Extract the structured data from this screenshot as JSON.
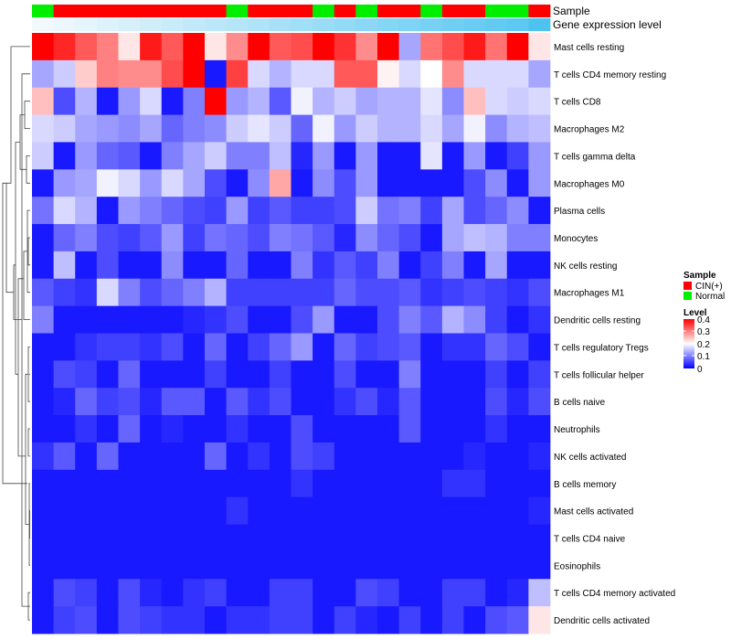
{
  "chart_data": {
    "type": "heatmap",
    "title": "",
    "annotation_tracks": [
      {
        "name": "Sample",
        "label": "Sample"
      },
      {
        "name": "Gene expression level",
        "label": "Gene expression level"
      }
    ],
    "sample_groups": [
      "G",
      "R",
      "R",
      "R",
      "R",
      "R",
      "R",
      "R",
      "R",
      "G",
      "R",
      "R",
      "R",
      "G",
      "R",
      "G",
      "R",
      "R",
      "G",
      "R",
      "R",
      "G",
      "G",
      "R"
    ],
    "expression_track": [
      0.03,
      0.04,
      0.05,
      0.06,
      0.07,
      0.08,
      0.09,
      0.1,
      0.11,
      0.12,
      0.13,
      0.14,
      0.15,
      0.16,
      0.17,
      0.18,
      0.19,
      0.2,
      0.21,
      0.22,
      0.23,
      0.24,
      0.25,
      0.27
    ],
    "rows": [
      "Mast cells resting",
      "T cells CD4 memory resting",
      "T cells CD8",
      "Macrophages M2",
      "T cells gamma delta",
      "Macrophages M0",
      "Plasma cells",
      "Monocytes",
      "NK cells resting",
      "Macrophages M1",
      "Dendritic cells resting",
      "T cells regulatory  Tregs",
      "T cells follicular helper",
      "B cells naive",
      "Neutrophils",
      "NK cells activated",
      "B cells memory",
      "Mast cells activated",
      "T cells CD4 naive",
      "Eosinophils",
      "T cells CD4 memory activated",
      "Dendritic cells activated"
    ],
    "values": [
      [
        0.4,
        0.37,
        0.33,
        0.3,
        0.22,
        0.38,
        0.33,
        0.4,
        0.22,
        0.29,
        0.4,
        0.33,
        0.34,
        0.4,
        0.36,
        0.29,
        0.4,
        0.13,
        0.31,
        0.34,
        0.38,
        0.31,
        0.4,
        0.22
      ],
      [
        0.13,
        0.16,
        0.24,
        0.3,
        0.29,
        0.29,
        0.34,
        0.4,
        0.02,
        0.35,
        0.17,
        0.14,
        0.17,
        0.17,
        0.33,
        0.33,
        0.21,
        0.17,
        0.2,
        0.29,
        0.17,
        0.17,
        0.17,
        0.13
      ],
      [
        0.25,
        0.06,
        0.14,
        0.02,
        0.12,
        0.17,
        0.02,
        0.1,
        0.4,
        0.12,
        0.14,
        0.07,
        0.19,
        0.14,
        0.16,
        0.13,
        0.14,
        0.14,
        0.18,
        0.11,
        0.25,
        0.17,
        0.16,
        0.17
      ],
      [
        0.17,
        0.16,
        0.13,
        0.12,
        0.11,
        0.13,
        0.08,
        0.1,
        0.11,
        0.16,
        0.18,
        0.16,
        0.08,
        0.19,
        0.12,
        0.16,
        0.14,
        0.14,
        0.17,
        0.13,
        0.19,
        0.11,
        0.14,
        0.15
      ],
      [
        0.16,
        0.02,
        0.12,
        0.08,
        0.07,
        0.02,
        0.1,
        0.13,
        0.16,
        0.1,
        0.1,
        0.15,
        0.03,
        0.12,
        0.02,
        0.12,
        0.02,
        0.02,
        0.18,
        0.02,
        0.12,
        0.02,
        0.05,
        0.12
      ],
      [
        0.02,
        0.12,
        0.13,
        0.19,
        0.17,
        0.12,
        0.17,
        0.13,
        0.06,
        0.02,
        0.11,
        0.27,
        0.02,
        0.11,
        0.06,
        0.12,
        0.02,
        0.02,
        0.02,
        0.02,
        0.06,
        0.11,
        0.02,
        0.12
      ],
      [
        0.09,
        0.17,
        0.14,
        0.02,
        0.12,
        0.1,
        0.08,
        0.06,
        0.05,
        0.12,
        0.05,
        0.07,
        0.05,
        0.05,
        0.06,
        0.16,
        0.09,
        0.1,
        0.05,
        0.13,
        0.06,
        0.08,
        0.11,
        0.02
      ],
      [
        0.02,
        0.08,
        0.1,
        0.06,
        0.05,
        0.07,
        0.12,
        0.05,
        0.09,
        0.08,
        0.06,
        0.1,
        0.09,
        0.07,
        0.03,
        0.11,
        0.08,
        0.06,
        0.02,
        0.13,
        0.15,
        0.14,
        0.1,
        0.1
      ],
      [
        0.02,
        0.15,
        0.02,
        0.06,
        0.02,
        0.02,
        0.11,
        0.02,
        0.02,
        0.08,
        0.02,
        0.02,
        0.1,
        0.04,
        0.07,
        0.05,
        0.1,
        0.02,
        0.05,
        0.1,
        0.02,
        0.13,
        0.02,
        0.02
      ],
      [
        0.07,
        0.05,
        0.04,
        0.17,
        0.1,
        0.06,
        0.08,
        0.1,
        0.14,
        0.05,
        0.05,
        0.05,
        0.05,
        0.05,
        0.08,
        0.06,
        0.06,
        0.07,
        0.04,
        0.05,
        0.06,
        0.05,
        0.04,
        0.06
      ],
      [
        0.1,
        0.02,
        0.02,
        0.02,
        0.02,
        0.02,
        0.02,
        0.03,
        0.04,
        0.06,
        0.02,
        0.02,
        0.06,
        0.12,
        0.02,
        0.02,
        0.06,
        0.1,
        0.07,
        0.14,
        0.11,
        0.05,
        0.02,
        0.04
      ],
      [
        0.02,
        0.02,
        0.04,
        0.05,
        0.05,
        0.04,
        0.06,
        0.02,
        0.08,
        0.02,
        0.05,
        0.08,
        0.12,
        0.02,
        0.08,
        0.05,
        0.06,
        0.07,
        0.02,
        0.04,
        0.04,
        0.08,
        0.06,
        0.02
      ],
      [
        0.02,
        0.06,
        0.05,
        0.02,
        0.08,
        0.02,
        0.02,
        0.02,
        0.05,
        0.02,
        0.02,
        0.05,
        0.02,
        0.02,
        0.06,
        0.02,
        0.02,
        0.1,
        0.02,
        0.02,
        0.02,
        0.05,
        0.02,
        0.05
      ],
      [
        0.02,
        0.03,
        0.08,
        0.05,
        0.06,
        0.03,
        0.07,
        0.07,
        0.02,
        0.07,
        0.04,
        0.06,
        0.02,
        0.02,
        0.04,
        0.06,
        0.03,
        0.07,
        0.02,
        0.02,
        0.02,
        0.06,
        0.03,
        0.06
      ],
      [
        0.02,
        0.02,
        0.04,
        0.02,
        0.08,
        0.02,
        0.03,
        0.02,
        0.02,
        0.04,
        0.02,
        0.02,
        0.06,
        0.02,
        0.02,
        0.02,
        0.02,
        0.07,
        0.02,
        0.02,
        0.02,
        0.04,
        0.02,
        0.02
      ],
      [
        0.04,
        0.07,
        0.02,
        0.08,
        0.02,
        0.02,
        0.02,
        0.02,
        0.08,
        0.02,
        0.04,
        0.02,
        0.06,
        0.05,
        0.02,
        0.02,
        0.02,
        0.02,
        0.02,
        0.02,
        0.03,
        0.02,
        0.02,
        0.03
      ],
      [
        0.02,
        0.02,
        0.02,
        0.02,
        0.02,
        0.02,
        0.02,
        0.02,
        0.02,
        0.02,
        0.02,
        0.02,
        0.04,
        0.02,
        0.02,
        0.02,
        0.02,
        0.02,
        0.02,
        0.04,
        0.04,
        0.02,
        0.02,
        0.02
      ],
      [
        0.02,
        0.02,
        0.02,
        0.02,
        0.02,
        0.02,
        0.02,
        0.02,
        0.02,
        0.04,
        0.02,
        0.02,
        0.02,
        0.02,
        0.02,
        0.02,
        0.02,
        0.02,
        0.02,
        0.02,
        0.02,
        0.02,
        0.02,
        0.03
      ],
      [
        0.02,
        0.02,
        0.02,
        0.02,
        0.02,
        0.02,
        0.02,
        0.02,
        0.02,
        0.02,
        0.02,
        0.02,
        0.02,
        0.02,
        0.02,
        0.02,
        0.02,
        0.02,
        0.02,
        0.02,
        0.02,
        0.02,
        0.02,
        0.02
      ],
      [
        0.02,
        0.02,
        0.02,
        0.02,
        0.02,
        0.02,
        0.02,
        0.02,
        0.02,
        0.02,
        0.02,
        0.02,
        0.02,
        0.02,
        0.02,
        0.02,
        0.02,
        0.02,
        0.02,
        0.02,
        0.02,
        0.02,
        0.02,
        0.02
      ],
      [
        0.02,
        0.06,
        0.05,
        0.02,
        0.06,
        0.03,
        0.02,
        0.04,
        0.05,
        0.02,
        0.02,
        0.05,
        0.05,
        0.02,
        0.02,
        0.06,
        0.05,
        0.02,
        0.02,
        0.05,
        0.05,
        0.02,
        0.03,
        0.15
      ],
      [
        0.02,
        0.05,
        0.06,
        0.02,
        0.06,
        0.05,
        0.04,
        0.04,
        0.02,
        0.04,
        0.04,
        0.05,
        0.05,
        0.02,
        0.05,
        0.03,
        0.02,
        0.05,
        0.02,
        0.05,
        0.02,
        0.06,
        0.07,
        0.22
      ]
    ],
    "legend": {
      "position": "right",
      "sample": {
        "title": "Sample",
        "entries": [
          {
            "label": "CIN(+)",
            "color": "#ff0000"
          },
          {
            "label": "Normal",
            "color": "#00ee00"
          }
        ]
      },
      "level": {
        "title": "Level",
        "ticks": [
          "0.4",
          "0.3",
          "0.2",
          "0.1",
          "0"
        ],
        "min": 0,
        "max": 0.4
      }
    },
    "colors": {
      "low": "#0000ff",
      "mid": "#ffffff",
      "high": "#ff0000",
      "cin": "#ff0000",
      "normal": "#00ee00",
      "track_low": "#f2f9fd",
      "track_high": "#4fc3f0"
    }
  }
}
